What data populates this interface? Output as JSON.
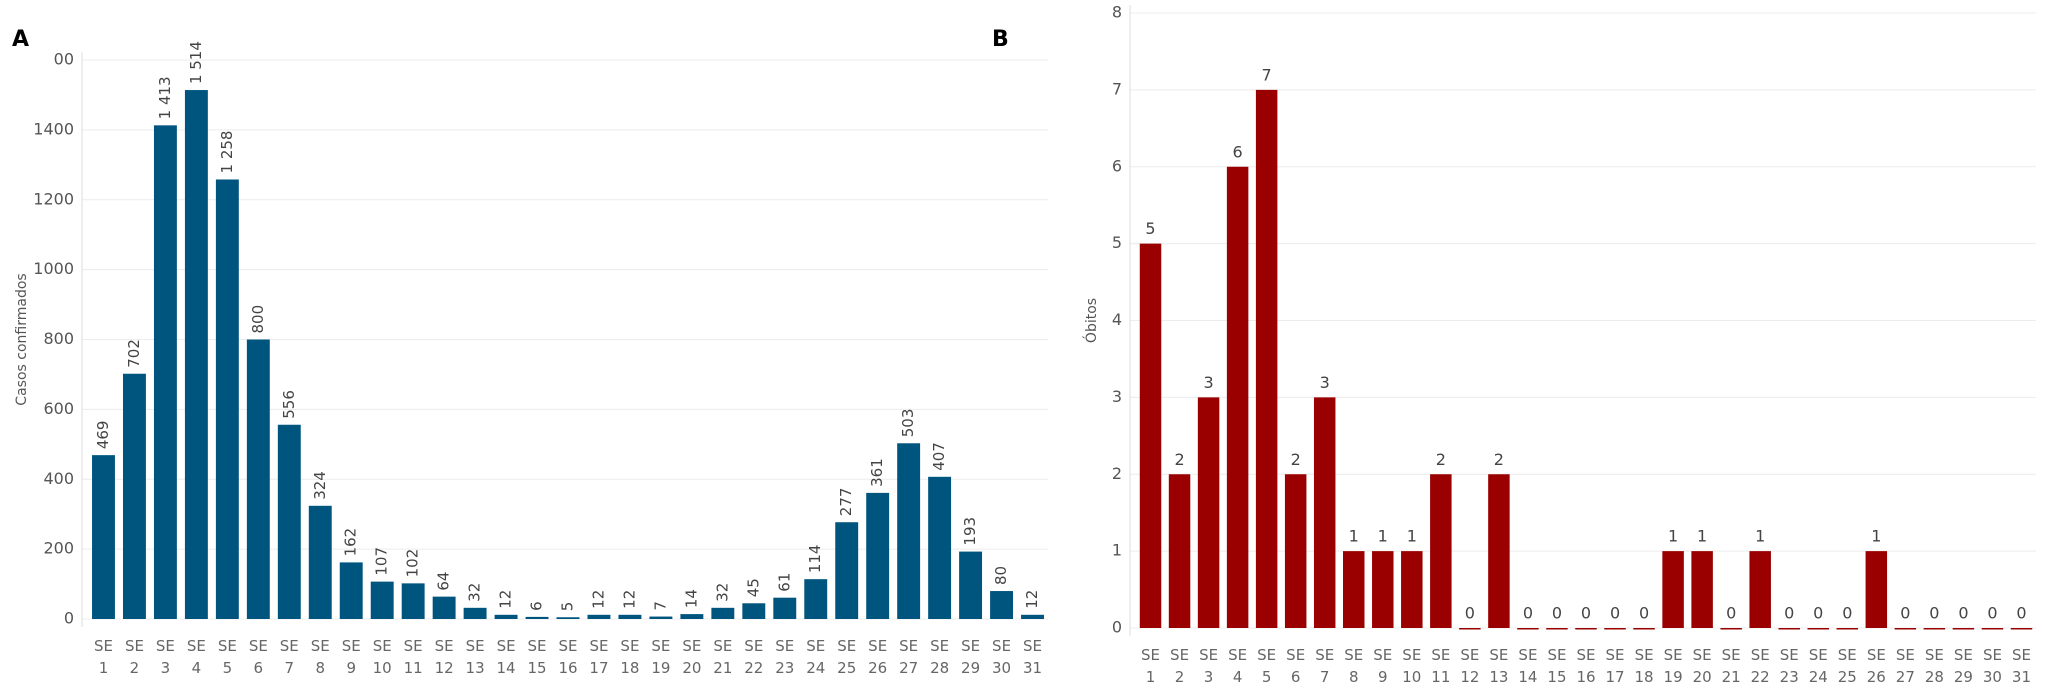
{
  "chart_data": [
    {
      "type": "bar",
      "panel": "A",
      "y_label": "Casos confirmados",
      "color": "#00557f",
      "value_label_rotation": "vertical",
      "categories": [
        "SE 1",
        "SE 2",
        "SE 3",
        "SE 4",
        "SE 5",
        "SE 6",
        "SE 7",
        "SE 8",
        "SE 9",
        "SE 10",
        "SE 11",
        "SE 12",
        "SE 13",
        "SE 14",
        "SE 15",
        "SE 16",
        "SE 17",
        "SE 18",
        "SE 19",
        "SE 20",
        "SE 21",
        "SE 22",
        "SE 23",
        "SE 24",
        "SE 25",
        "SE 26",
        "SE 27",
        "SE 28",
        "SE 29",
        "SE 30",
        "SE 31"
      ],
      "values": [
        469,
        702,
        1413,
        1514,
        1258,
        800,
        556,
        324,
        162,
        107,
        102,
        64,
        32,
        12,
        6,
        5,
        12,
        12,
        7,
        14,
        32,
        45,
        61,
        114,
        277,
        361,
        503,
        407,
        193,
        80,
        12
      ],
      "value_labels": [
        "469",
        "702",
        "1 413",
        "1 514",
        "1 258",
        "800",
        "556",
        "324",
        "162",
        "107",
        "102",
        "64",
        "32",
        "12",
        "6",
        "5",
        "12",
        "12",
        "7",
        "14",
        "32",
        "45",
        "61",
        "114",
        "277",
        "361",
        "503",
        "407",
        "193",
        "80",
        "12"
      ],
      "ylim": [
        0,
        1600
      ],
      "yticks": [
        0,
        200,
        400,
        600,
        800,
        1000,
        1200,
        1400,
        {
          "value": 1600,
          "label": "00"
        }
      ],
      "grid": true
    },
    {
      "type": "bar",
      "panel": "B",
      "y_label": "Óbitos",
      "color": "#9b0000",
      "value_label_rotation": "horizontal",
      "categories": [
        "SE 1",
        "SE 2",
        "SE 3",
        "SE 4",
        "SE 5",
        "SE 6",
        "SE 7",
        "SE 8",
        "SE 9",
        "SE 10",
        "SE 11",
        "SE 12",
        "SE 13",
        "SE 14",
        "SE 15",
        "SE 16",
        "SE 17",
        "SE 18",
        "SE 19",
        "SE 20",
        "SE 21",
        "SE 22",
        "SE 23",
        "SE 24",
        "SE 25",
        "SE 26",
        "SE 27",
        "SE 28",
        "SE 29",
        "SE 30",
        "SE 31"
      ],
      "values": [
        5,
        2,
        3,
        6,
        7,
        2,
        3,
        1,
        1,
        1,
        2,
        0,
        2,
        0,
        0,
        0,
        0,
        0,
        1,
        1,
        0,
        1,
        0,
        0,
        0,
        1,
        0,
        0,
        0,
        0,
        0
      ],
      "ylim": [
        0,
        8
      ],
      "yticks": [
        0,
        1,
        2,
        3,
        4,
        5,
        6,
        7,
        8
      ],
      "grid": true
    }
  ]
}
